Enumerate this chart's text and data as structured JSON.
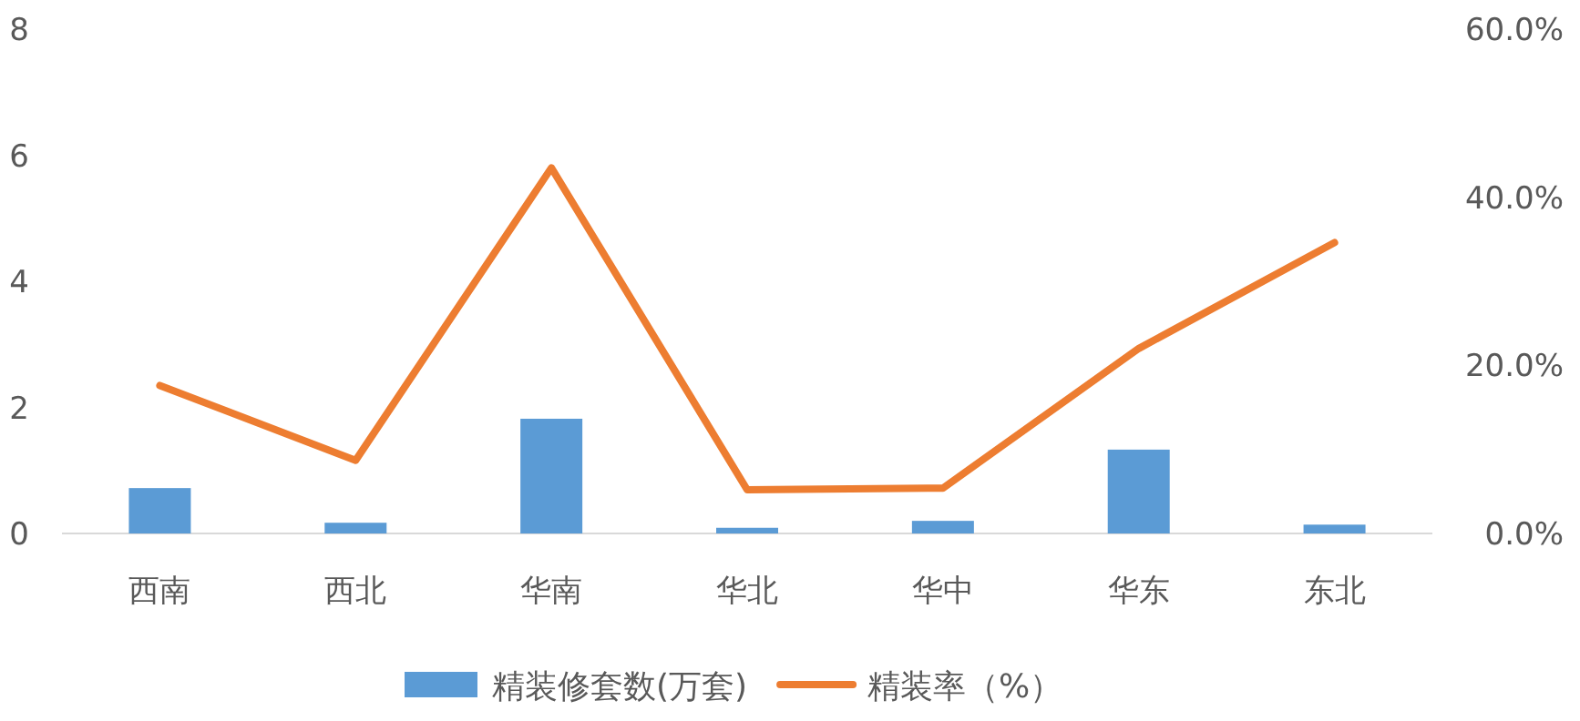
{
  "chart_data": {
    "type": "bar",
    "categories": [
      "西南",
      "西北",
      "华南",
      "华北",
      "华中",
      "华东",
      "东北"
    ],
    "series": [
      {
        "name": "精装修套数(万套)",
        "color": "#5b9bd5",
        "values": [
          0.72,
          0.17,
          1.82,
          0.09,
          0.2,
          1.33,
          0.14
        ]
      },
      {
        "name": "精装率（%）",
        "type": "line",
        "axis": "y2",
        "color": "#ed7d31",
        "values": [
          17.6,
          8.7,
          43.5,
          5.2,
          5.4,
          22,
          34.6
        ]
      }
    ],
    "ylim": [
      0,
      8
    ],
    "yticks": [
      0,
      2,
      4,
      6,
      8
    ],
    "y2lim": [
      0,
      60
    ],
    "y2ticks": [
      {
        "value": 0,
        "label": "0.0%"
      },
      {
        "value": 20,
        "label": "20.0%"
      },
      {
        "value": 40,
        "label": "40.0%"
      },
      {
        "value": 60,
        "label": "60.0%"
      }
    ],
    "legend": "bottom",
    "grid": false
  }
}
